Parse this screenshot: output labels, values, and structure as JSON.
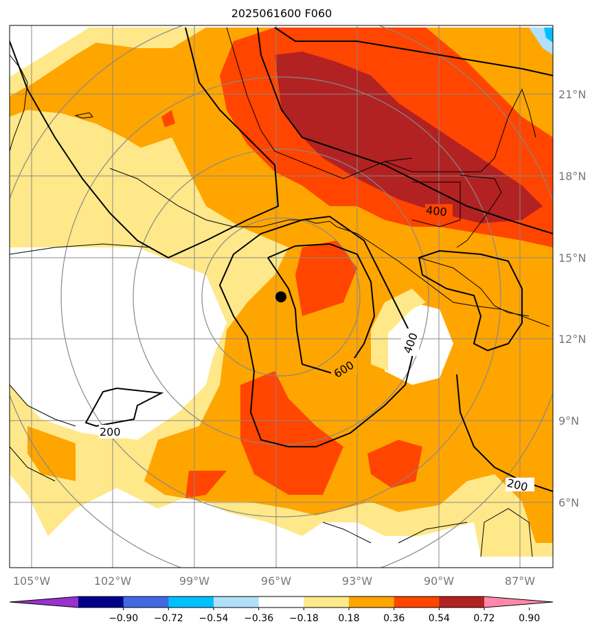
{
  "title": "2025061600 F060",
  "map": {
    "lon_labels": [
      "105°W",
      "102°W",
      "99°W",
      "96°W",
      "93°W",
      "90°W",
      "87°W"
    ],
    "lat_labels": [
      "21°N",
      "18°N",
      "15°N",
      "12°N",
      "9°N",
      "6°N"
    ],
    "contour_labels": [
      "400",
      "400",
      "600",
      "200",
      "200"
    ],
    "marker": {
      "name": "center-dot",
      "lon": -95.8,
      "lat": 13.5
    }
  },
  "colorbar": {
    "tick_labels": [
      "−0.90",
      "−0.72",
      "−0.54",
      "−0.36",
      "−0.18",
      "0.18",
      "0.36",
      "0.54",
      "0.72",
      "0.90"
    ],
    "colors": [
      "#9932cc",
      "#00008b",
      "#4169e1",
      "#00bfff",
      "#b0e0fa",
      "#ffffff",
      "#ffe88a",
      "#ffa500",
      "#ff4500",
      "#b22222",
      "#ff88aa"
    ]
  }
}
